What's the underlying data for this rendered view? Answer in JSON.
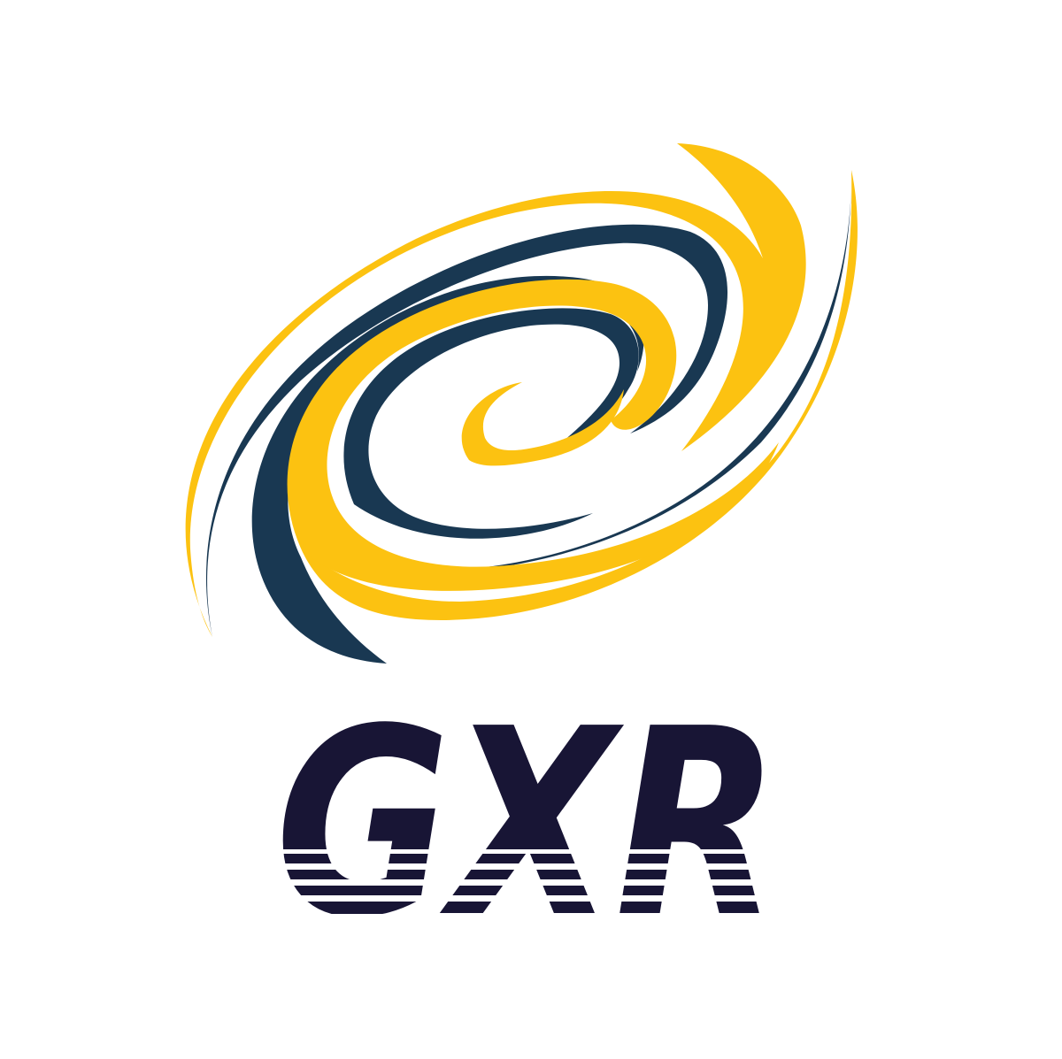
{
  "logo": {
    "wordmark": "GXR",
    "emblem": "swirl-galaxy-emblem"
  },
  "colors": {
    "background": "#ffffff",
    "accent_yellow": "#fcc211",
    "accent_navy": "#193852",
    "wordmark": "#181535"
  }
}
